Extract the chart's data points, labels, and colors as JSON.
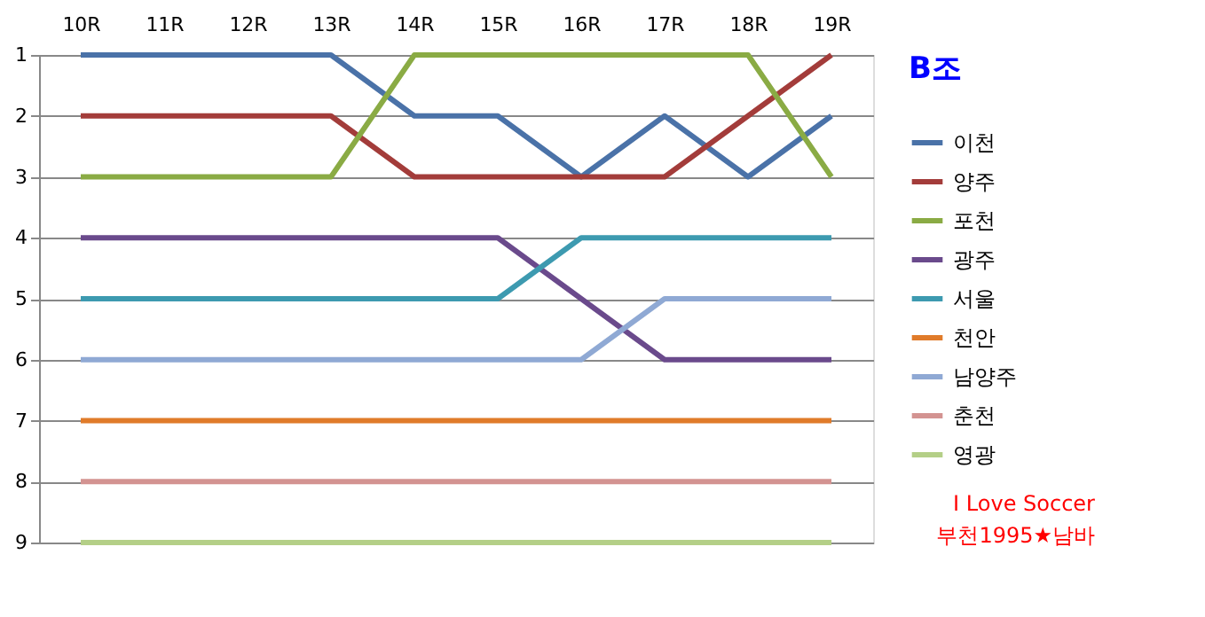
{
  "chart_data": {
    "type": "line",
    "title": "B조",
    "categories": [
      "10R",
      "11R",
      "12R",
      "13R",
      "14R",
      "15R",
      "16R",
      "17R",
      "18R",
      "19R"
    ],
    "series": [
      {
        "name": "이천",
        "color": "#4a72a8",
        "values": [
          1,
          1,
          1,
          1,
          2,
          2,
          3,
          2,
          3,
          2
        ]
      },
      {
        "name": "양주",
        "color": "#a33c3a",
        "values": [
          2,
          2,
          2,
          2,
          3,
          3,
          3,
          3,
          2,
          1
        ]
      },
      {
        "name": "포천",
        "color": "#8aab44",
        "values": [
          3,
          3,
          3,
          3,
          1,
          1,
          1,
          1,
          1,
          3
        ]
      },
      {
        "name": "광주",
        "color": "#6a4a8c",
        "values": [
          4,
          4,
          4,
          4,
          4,
          4,
          5,
          6,
          6,
          6
        ]
      },
      {
        "name": "서울",
        "color": "#3d9ab0",
        "values": [
          5,
          5,
          5,
          5,
          5,
          5,
          4,
          4,
          4,
          4
        ]
      },
      {
        "name": "천안",
        "color": "#e07b2a",
        "values": [
          7,
          7,
          7,
          7,
          7,
          7,
          7,
          7,
          7,
          7
        ]
      },
      {
        "name": "남양주",
        "color": "#8fa9d4",
        "values": [
          6,
          6,
          6,
          6,
          6,
          6,
          6,
          5,
          5,
          5
        ]
      },
      {
        "name": "춘천",
        "color": "#d39391",
        "values": [
          8,
          8,
          8,
          8,
          8,
          8,
          8,
          8,
          8,
          8
        ]
      },
      {
        "name": "영광",
        "color": "#b4cf87",
        "values": [
          9,
          9,
          9,
          9,
          9,
          9,
          9,
          9,
          9,
          9
        ]
      }
    ],
    "ylim": [
      9,
      1
    ],
    "yticks": [
      1,
      2,
      3,
      4,
      5,
      6,
      7,
      8,
      9
    ],
    "grid": "y",
    "legend": "right",
    "marker": "none",
    "line_style": "solid",
    "annotations": [
      "I Love Soccer",
      "부천1995★남바"
    ]
  }
}
